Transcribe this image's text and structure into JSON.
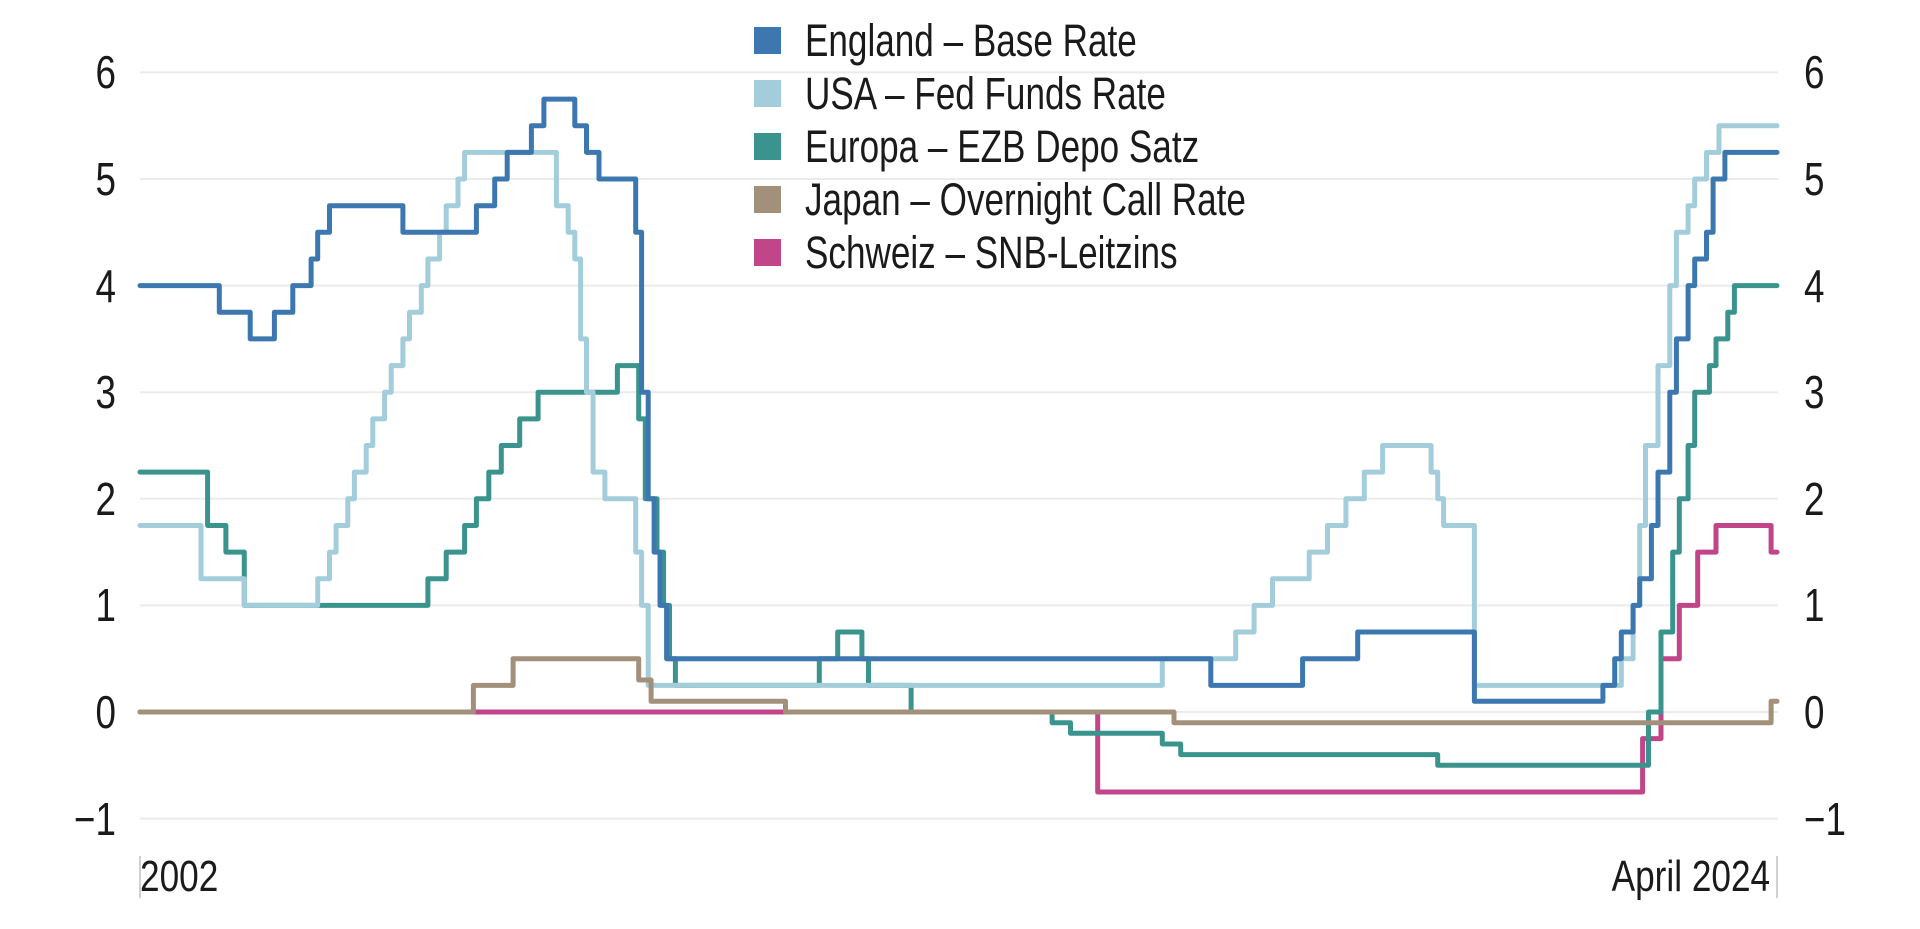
{
  "legend": {
    "items": [
      {
        "label": "England – Base Rate",
        "color": "#3d77b0"
      },
      {
        "label": "USA – Fed Funds Rate",
        "color": "#a3cdda"
      },
      {
        "label": "Europa – EZB Depo Satz",
        "color": "#3a948d"
      },
      {
        "label": "Japan – Overnight Call Rate",
        "color": "#a2907b"
      },
      {
        "label": "Schweiz – SNB-Leitzins",
        "color": "#c04589"
      }
    ]
  },
  "x_axis": {
    "left_label": "2002",
    "right_label": "April 2024"
  },
  "colors": {
    "gridline": "#ebebeb",
    "axis_tick": "#d0d0d0",
    "text": "#1a1a1a",
    "background": "#ffffff"
  },
  "chart_data": {
    "type": "line",
    "step": true,
    "title": "",
    "xlabel": "",
    "ylabel": "",
    "grid": "horizontal",
    "legend_position": "top-center",
    "x_domain": [
      2002,
      2024.29
    ],
    "y_domain": [
      -1,
      6
    ],
    "yticks": [
      -1,
      0,
      1,
      2,
      3,
      4,
      5,
      6
    ],
    "ytick_labels": [
      "−1",
      "0",
      "1",
      "2",
      "3",
      "4",
      "5",
      "6"
    ],
    "x_tick_labels": [
      "2002",
      "April 2024"
    ],
    "draw_order": [
      4,
      2,
      1,
      3,
      0
    ],
    "series": [
      {
        "id": "england",
        "name": "England – Base Rate",
        "color": "#3d77b0",
        "points": [
          [
            2002.0,
            4.0
          ],
          [
            2003.08,
            3.75
          ],
          [
            2003.5,
            3.5
          ],
          [
            2003.83,
            3.75
          ],
          [
            2004.08,
            4.0
          ],
          [
            2004.33,
            4.25
          ],
          [
            2004.42,
            4.5
          ],
          [
            2004.58,
            4.75
          ],
          [
            2005.58,
            4.5
          ],
          [
            2006.58,
            4.75
          ],
          [
            2006.83,
            5.0
          ],
          [
            2007.0,
            5.25
          ],
          [
            2007.33,
            5.5
          ],
          [
            2007.5,
            5.75
          ],
          [
            2007.92,
            5.5
          ],
          [
            2008.08,
            5.25
          ],
          [
            2008.25,
            5.0
          ],
          [
            2008.75,
            4.5
          ],
          [
            2008.83,
            3.0
          ],
          [
            2008.92,
            2.0
          ],
          [
            2009.0,
            1.5
          ],
          [
            2009.08,
            1.0
          ],
          [
            2009.17,
            0.5
          ],
          [
            2016.58,
            0.25
          ],
          [
            2017.83,
            0.5
          ],
          [
            2018.58,
            0.75
          ],
          [
            2020.17,
            0.1
          ],
          [
            2021.92,
            0.25
          ],
          [
            2022.08,
            0.5
          ],
          [
            2022.17,
            0.75
          ],
          [
            2022.33,
            1.0
          ],
          [
            2022.42,
            1.25
          ],
          [
            2022.58,
            1.75
          ],
          [
            2022.67,
            2.25
          ],
          [
            2022.83,
            3.0
          ],
          [
            2022.92,
            3.5
          ],
          [
            2023.08,
            4.0
          ],
          [
            2023.17,
            4.25
          ],
          [
            2023.33,
            4.5
          ],
          [
            2023.42,
            5.0
          ],
          [
            2023.58,
            5.25
          ]
        ]
      },
      {
        "id": "usa",
        "name": "USA – Fed Funds Rate",
        "color": "#a3cdda",
        "points": [
          [
            2002.0,
            1.75
          ],
          [
            2002.83,
            1.25
          ],
          [
            2003.42,
            1.0
          ],
          [
            2004.42,
            1.25
          ],
          [
            2004.58,
            1.5
          ],
          [
            2004.67,
            1.75
          ],
          [
            2004.83,
            2.0
          ],
          [
            2004.92,
            2.25
          ],
          [
            2005.08,
            2.5
          ],
          [
            2005.17,
            2.75
          ],
          [
            2005.33,
            3.0
          ],
          [
            2005.42,
            3.25
          ],
          [
            2005.58,
            3.5
          ],
          [
            2005.67,
            3.75
          ],
          [
            2005.83,
            4.0
          ],
          [
            2005.92,
            4.25
          ],
          [
            2006.08,
            4.5
          ],
          [
            2006.17,
            4.75
          ],
          [
            2006.33,
            5.0
          ],
          [
            2006.42,
            5.25
          ],
          [
            2007.67,
            4.75
          ],
          [
            2007.83,
            4.5
          ],
          [
            2007.92,
            4.25
          ],
          [
            2008.0,
            3.5
          ],
          [
            2008.08,
            3.0
          ],
          [
            2008.17,
            2.25
          ],
          [
            2008.33,
            2.0
          ],
          [
            2008.75,
            1.5
          ],
          [
            2008.83,
            1.0
          ],
          [
            2008.92,
            0.25
          ],
          [
            2015.92,
            0.5
          ],
          [
            2016.92,
            0.75
          ],
          [
            2017.17,
            1.0
          ],
          [
            2017.42,
            1.25
          ],
          [
            2017.92,
            1.5
          ],
          [
            2018.17,
            1.75
          ],
          [
            2018.42,
            2.0
          ],
          [
            2018.67,
            2.25
          ],
          [
            2018.92,
            2.5
          ],
          [
            2019.58,
            2.25
          ],
          [
            2019.67,
            2.0
          ],
          [
            2019.75,
            1.75
          ],
          [
            2020.17,
            0.25
          ],
          [
            2022.17,
            0.5
          ],
          [
            2022.33,
            1.0
          ],
          [
            2022.42,
            1.75
          ],
          [
            2022.5,
            2.5
          ],
          [
            2022.67,
            3.25
          ],
          [
            2022.83,
            4.0
          ],
          [
            2022.92,
            4.5
          ],
          [
            2023.08,
            4.75
          ],
          [
            2023.17,
            5.0
          ],
          [
            2023.33,
            5.25
          ],
          [
            2023.5,
            5.5
          ]
        ]
      },
      {
        "id": "europa",
        "name": "Europa – EZB Depo Satz",
        "color": "#3a948d",
        "points": [
          [
            2002.0,
            2.25
          ],
          [
            2002.92,
            1.75
          ],
          [
            2003.17,
            1.5
          ],
          [
            2003.42,
            1.0
          ],
          [
            2005.92,
            1.25
          ],
          [
            2006.17,
            1.5
          ],
          [
            2006.42,
            1.75
          ],
          [
            2006.58,
            2.0
          ],
          [
            2006.75,
            2.25
          ],
          [
            2006.92,
            2.5
          ],
          [
            2007.17,
            2.75
          ],
          [
            2007.42,
            3.0
          ],
          [
            2008.5,
            3.25
          ],
          [
            2008.79,
            2.75
          ],
          [
            2008.88,
            2.0
          ],
          [
            2009.04,
            1.5
          ],
          [
            2009.13,
            1.0
          ],
          [
            2009.21,
            0.5
          ],
          [
            2009.29,
            0.25
          ],
          [
            2011.25,
            0.5
          ],
          [
            2011.5,
            0.75
          ],
          [
            2011.83,
            0.5
          ],
          [
            2011.92,
            0.25
          ],
          [
            2012.5,
            0.0
          ],
          [
            2014.42,
            -0.1
          ],
          [
            2014.67,
            -0.2
          ],
          [
            2015.92,
            -0.3
          ],
          [
            2016.17,
            -0.4
          ],
          [
            2019.67,
            -0.5
          ],
          [
            2022.54,
            0.0
          ],
          [
            2022.71,
            0.75
          ],
          [
            2022.87,
            1.5
          ],
          [
            2022.96,
            2.0
          ],
          [
            2023.08,
            2.5
          ],
          [
            2023.17,
            3.0
          ],
          [
            2023.37,
            3.25
          ],
          [
            2023.46,
            3.5
          ],
          [
            2023.62,
            3.75
          ],
          [
            2023.71,
            4.0
          ]
        ]
      },
      {
        "id": "japan",
        "name": "Japan – Overnight Call Rate",
        "color": "#a2907b",
        "points": [
          [
            2002.0,
            0.0
          ],
          [
            2006.54,
            0.25
          ],
          [
            2007.08,
            0.5
          ],
          [
            2008.79,
            0.3
          ],
          [
            2008.96,
            0.1
          ],
          [
            2010.79,
            0.0
          ],
          [
            2016.08,
            -0.1
          ],
          [
            2024.21,
            0.1
          ]
        ]
      },
      {
        "id": "schweiz",
        "name": "Schweiz – SNB-Leitzins",
        "color": "#c04589",
        "points": [
          [
            2002.0,
            0.0
          ],
          [
            2015.04,
            -0.75
          ],
          [
            2022.46,
            -0.25
          ],
          [
            2022.71,
            0.5
          ],
          [
            2022.96,
            1.0
          ],
          [
            2023.21,
            1.5
          ],
          [
            2023.46,
            1.75
          ],
          [
            2024.21,
            1.5
          ]
        ]
      }
    ]
  }
}
